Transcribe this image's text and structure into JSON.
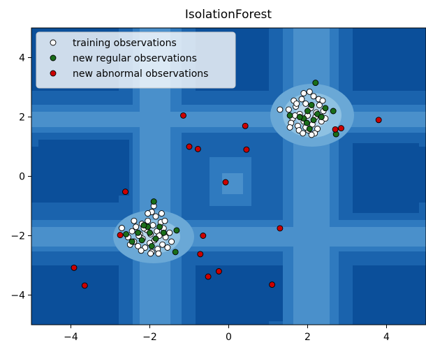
{
  "chart_data": {
    "type": "scatter",
    "title": "IsolationForest",
    "xlabel": "",
    "ylabel": "",
    "xlim": [
      -5,
      5
    ],
    "ylim": [
      -5,
      5
    ],
    "x_ticks": [
      -4,
      -2,
      0,
      2,
      4
    ],
    "x_tick_labels": [
      "−4",
      "−2",
      "0",
      "2",
      "4"
    ],
    "y_ticks": [
      -4,
      -2,
      0,
      2,
      4
    ],
    "y_tick_labels": [
      "−4",
      "−2",
      "0",
      "2",
      "4"
    ],
    "grid": false,
    "legend": {
      "position": "top-left"
    },
    "background": {
      "type": "filled-contour",
      "colormap": "Blues_r",
      "colors": [
        "#0b4f9a",
        "#1a63ad",
        "#2f7abf",
        "#4a90cb",
        "#6aa8d6",
        "#8ec1e2",
        "#b9d7ec"
      ]
    },
    "series": [
      {
        "name": "training observations",
        "color": "#ffffff",
        "edge": "#000000",
        "points": [
          [
            -2.71,
            -1.74
          ],
          [
            -2.55,
            -2.05
          ],
          [
            -2.45,
            -1.85
          ],
          [
            -2.4,
            -2.2
          ],
          [
            -2.35,
            -1.7
          ],
          [
            -2.3,
            -2.35
          ],
          [
            -2.25,
            -1.95
          ],
          [
            -2.2,
            -1.6
          ],
          [
            -2.18,
            -2.1
          ],
          [
            -2.12,
            -2.4
          ],
          [
            -2.08,
            -1.8
          ],
          [
            -2.05,
            -1.5
          ],
          [
            -2.0,
            -2.25
          ],
          [
            -1.98,
            -1.95
          ],
          [
            -1.95,
            -2.55
          ],
          [
            -1.92,
            -1.65
          ],
          [
            -1.88,
            -2.15
          ],
          [
            -1.85,
            -1.35
          ],
          [
            -1.82,
            -1.85
          ],
          [
            -1.8,
            -2.45
          ],
          [
            -1.76,
            -2.0
          ],
          [
            -1.72,
            -1.55
          ],
          [
            -1.68,
            -2.3
          ],
          [
            -1.65,
            -1.75
          ],
          [
            -1.6,
            -2.05
          ],
          [
            -1.55,
            -2.4
          ],
          [
            -1.5,
            -1.9
          ],
          [
            -1.45,
            -2.2
          ],
          [
            -1.95,
            -1.2
          ],
          [
            -2.05,
            -1.25
          ],
          [
            -2.28,
            -2.0
          ],
          [
            -2.15,
            -1.75
          ],
          [
            -1.78,
            -2.6
          ],
          [
            -2.4,
            -1.5
          ],
          [
            -1.7,
            -1.25
          ],
          [
            -2.5,
            -2.3
          ],
          [
            -1.98,
            -2.6
          ],
          [
            -2.22,
            -2.5
          ],
          [
            -1.62,
            -1.5
          ],
          [
            -1.9,
            -1.0
          ],
          [
            1.52,
            2.25
          ],
          [
            1.62,
            1.95
          ],
          [
            1.7,
            2.35
          ],
          [
            1.75,
            1.7
          ],
          [
            1.8,
            2.1
          ],
          [
            1.85,
            2.6
          ],
          [
            1.9,
            1.85
          ],
          [
            1.95,
            2.45
          ],
          [
            2.0,
            2.05
          ],
          [
            2.02,
            1.55
          ],
          [
            2.08,
            2.3
          ],
          [
            2.12,
            1.75
          ],
          [
            2.15,
            2.7
          ],
          [
            2.2,
            2.0
          ],
          [
            2.25,
            1.6
          ],
          [
            2.3,
            2.4
          ],
          [
            2.35,
            1.85
          ],
          [
            2.4,
            2.2
          ],
          [
            1.68,
            2.05
          ],
          [
            1.58,
            1.8
          ],
          [
            1.9,
            2.8
          ],
          [
            2.05,
            2.85
          ],
          [
            2.28,
            2.6
          ],
          [
            1.78,
            1.55
          ],
          [
            2.18,
            1.45
          ],
          [
            1.95,
            1.65
          ],
          [
            2.45,
            1.95
          ],
          [
            1.65,
            2.55
          ],
          [
            2.1,
            1.4
          ],
          [
            1.3,
            2.25
          ],
          [
            1.72,
            2.45
          ],
          [
            2.22,
            2.15
          ],
          [
            1.88,
            1.45
          ],
          [
            2.38,
            2.55
          ],
          [
            1.55,
            1.65
          ]
        ]
      },
      {
        "name": "new regular observations",
        "color": "#1a6e1a",
        "edge": "#000000",
        "points": [
          [
            -1.9,
            -0.85
          ],
          [
            -1.75,
            -1.7
          ],
          [
            -2.05,
            -1.7
          ],
          [
            -2.3,
            -1.9
          ],
          [
            -2.45,
            -2.2
          ],
          [
            -1.95,
            -2.35
          ],
          [
            -2.15,
            -1.65
          ],
          [
            -1.32,
            -1.82
          ],
          [
            -1.35,
            -2.55
          ],
          [
            -2.6,
            -1.95
          ],
          [
            -1.85,
            -2.1
          ],
          [
            -2.2,
            -2.15
          ],
          [
            -1.65,
            -1.9
          ],
          [
            -2.0,
            -1.9
          ],
          [
            2.2,
            3.15
          ],
          [
            1.55,
            2.05
          ],
          [
            2.0,
            2.2
          ],
          [
            2.25,
            2.1
          ],
          [
            1.9,
            1.95
          ],
          [
            2.1,
            2.4
          ],
          [
            2.35,
            2.0
          ],
          [
            2.72,
            1.42
          ],
          [
            2.65,
            2.2
          ],
          [
            1.98,
            1.8
          ],
          [
            2.15,
            1.9
          ],
          [
            1.8,
            2.0
          ],
          [
            2.45,
            2.3
          ],
          [
            2.05,
            1.6
          ]
        ]
      },
      {
        "name": "new abnormal observations",
        "color": "#cc0000",
        "edge": "#000000",
        "points": [
          [
            -1.15,
            2.05
          ],
          [
            -1.0,
            1.0
          ],
          [
            -0.78,
            0.92
          ],
          [
            0.42,
            1.7
          ],
          [
            0.45,
            0.9
          ],
          [
            -0.08,
            -0.2
          ],
          [
            -2.62,
            -0.52
          ],
          [
            -0.65,
            -2.0
          ],
          [
            -0.72,
            -2.62
          ],
          [
            -0.52,
            -3.38
          ],
          [
            -0.25,
            -3.2
          ],
          [
            -3.92,
            -3.08
          ],
          [
            -3.65,
            -3.68
          ],
          [
            1.3,
            -1.75
          ],
          [
            1.1,
            -3.65
          ],
          [
            2.7,
            1.58
          ],
          [
            2.85,
            1.62
          ],
          [
            3.8,
            1.9
          ],
          [
            -2.75,
            -1.98
          ]
        ]
      }
    ]
  }
}
